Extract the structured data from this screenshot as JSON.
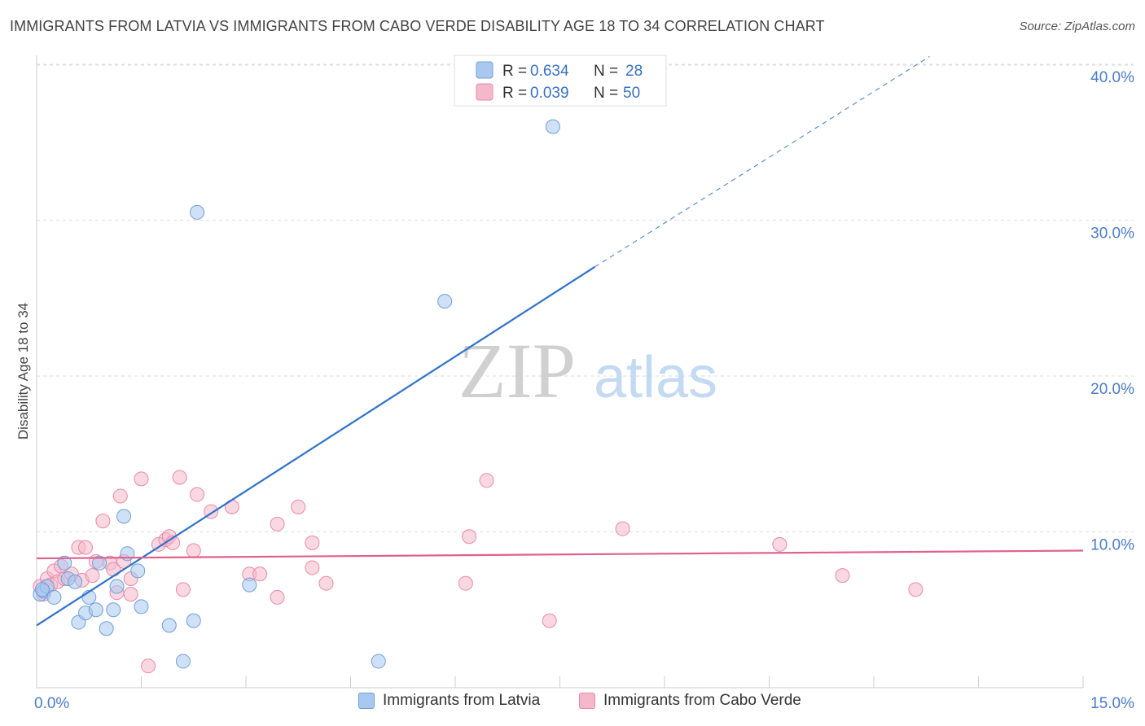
{
  "header": {
    "title": "IMMIGRANTS FROM LATVIA VS IMMIGRANTS FROM CABO VERDE DISABILITY AGE 18 TO 34 CORRELATION CHART",
    "source": "Source: ZipAtlas.com"
  },
  "watermark": {
    "zip": "ZIP",
    "atlas": "atlas"
  },
  "colors": {
    "latvia_fill": "#a8c8f0",
    "latvia_stroke": "#6f9fd8",
    "latvia_line": "#2f72c9",
    "caboverde_fill": "#f5b8cb",
    "caboverde_stroke": "#e88aa8",
    "caboverde_line": "#e0608c",
    "tick_label": "#4a7cc8",
    "grid": "#dddddd"
  },
  "legend_top": {
    "rows": [
      {
        "r_label": "R =",
        "r_value": "0.634",
        "n_label": "N =",
        "n_value": "28"
      },
      {
        "r_label": "R =",
        "r_value": "0.039",
        "n_label": "N =",
        "n_value": "50"
      }
    ]
  },
  "legend_bottom": {
    "items": [
      {
        "label": "Immigrants from Latvia"
      },
      {
        "label": "Immigrants from Cabo Verde"
      }
    ]
  },
  "chart_data": {
    "type": "scatter",
    "title": "IMMIGRANTS FROM LATVIA VS IMMIGRANTS FROM CABO VERDE DISABILITY AGE 18 TO 34 CORRELATION CHART",
    "xlabel": "",
    "ylabel": "Disability Age 18 to 34",
    "xlim": [
      0,
      15
    ],
    "ylim": [
      0,
      40
    ],
    "x_tick_labels": [
      "0.0%",
      "15.0%"
    ],
    "y_ticks": [
      10,
      20,
      30,
      40
    ],
    "y_tick_labels": [
      "10.0%",
      "20.0%",
      "30.0%",
      "40.0%"
    ],
    "grid": true,
    "legend_placement": "top-center",
    "series": [
      {
        "name": "Immigrants from Latvia",
        "r": 0.634,
        "n": 28,
        "trend": {
          "x": [
            0,
            8.0
          ],
          "y": [
            4.0,
            27.0
          ],
          "dashed_extension_to": [
            12.8,
            40.5
          ]
        },
        "points": [
          [
            0.05,
            6.0
          ],
          [
            0.1,
            6.2
          ],
          [
            0.15,
            6.5
          ],
          [
            0.25,
            5.8
          ],
          [
            0.4,
            8.0
          ],
          [
            0.45,
            7.0
          ],
          [
            0.55,
            6.8
          ],
          [
            0.6,
            4.2
          ],
          [
            0.7,
            4.8
          ],
          [
            0.75,
            5.8
          ],
          [
            0.85,
            5.0
          ],
          [
            0.9,
            8.0
          ],
          [
            1.0,
            3.8
          ],
          [
            1.1,
            5.0
          ],
          [
            1.15,
            6.5
          ],
          [
            1.25,
            11.0
          ],
          [
            1.3,
            8.6
          ],
          [
            1.45,
            7.5
          ],
          [
            1.5,
            5.2
          ],
          [
            1.9,
            4.0
          ],
          [
            2.1,
            1.7
          ],
          [
            2.25,
            4.3
          ],
          [
            2.3,
            30.5
          ],
          [
            3.05,
            6.6
          ],
          [
            4.9,
            1.7
          ],
          [
            5.85,
            24.8
          ],
          [
            7.4,
            36.0
          ],
          [
            0.08,
            6.3
          ]
        ]
      },
      {
        "name": "Immigrants from Cabo Verde",
        "r": 0.039,
        "n": 50,
        "trend": {
          "x": [
            0,
            15.0
          ],
          "y": [
            8.3,
            8.8
          ]
        },
        "points": [
          [
            0.05,
            6.5
          ],
          [
            0.1,
            6.0
          ],
          [
            0.15,
            7.0
          ],
          [
            0.2,
            6.6
          ],
          [
            0.25,
            7.5
          ],
          [
            0.3,
            6.8
          ],
          [
            0.35,
            7.8
          ],
          [
            0.4,
            7.0
          ],
          [
            0.5,
            7.3
          ],
          [
            0.6,
            9.0
          ],
          [
            0.65,
            6.9
          ],
          [
            0.7,
            9.0
          ],
          [
            0.8,
            7.2
          ],
          [
            0.85,
            8.1
          ],
          [
            0.95,
            10.7
          ],
          [
            1.05,
            8.0
          ],
          [
            1.1,
            7.6
          ],
          [
            1.15,
            6.1
          ],
          [
            1.2,
            12.3
          ],
          [
            1.25,
            8.1
          ],
          [
            1.35,
            6.0
          ],
          [
            1.35,
            7.0
          ],
          [
            1.5,
            13.4
          ],
          [
            1.6,
            1.4
          ],
          [
            1.75,
            9.2
          ],
          [
            1.85,
            9.5
          ],
          [
            1.9,
            9.7
          ],
          [
            1.95,
            9.3
          ],
          [
            2.05,
            13.5
          ],
          [
            2.1,
            6.3
          ],
          [
            2.25,
            8.8
          ],
          [
            2.3,
            12.4
          ],
          [
            2.5,
            11.3
          ],
          [
            2.8,
            11.6
          ],
          [
            3.05,
            7.3
          ],
          [
            3.2,
            7.3
          ],
          [
            3.45,
            10.5
          ],
          [
            3.45,
            5.8
          ],
          [
            3.75,
            11.6
          ],
          [
            3.95,
            7.7
          ],
          [
            3.95,
            9.3
          ],
          [
            4.15,
            6.7
          ],
          [
            6.15,
            6.7
          ],
          [
            6.2,
            9.7
          ],
          [
            6.45,
            13.3
          ],
          [
            7.35,
            4.3
          ],
          [
            8.4,
            10.2
          ],
          [
            10.65,
            9.2
          ],
          [
            11.55,
            7.2
          ],
          [
            12.6,
            6.3
          ]
        ]
      }
    ]
  }
}
